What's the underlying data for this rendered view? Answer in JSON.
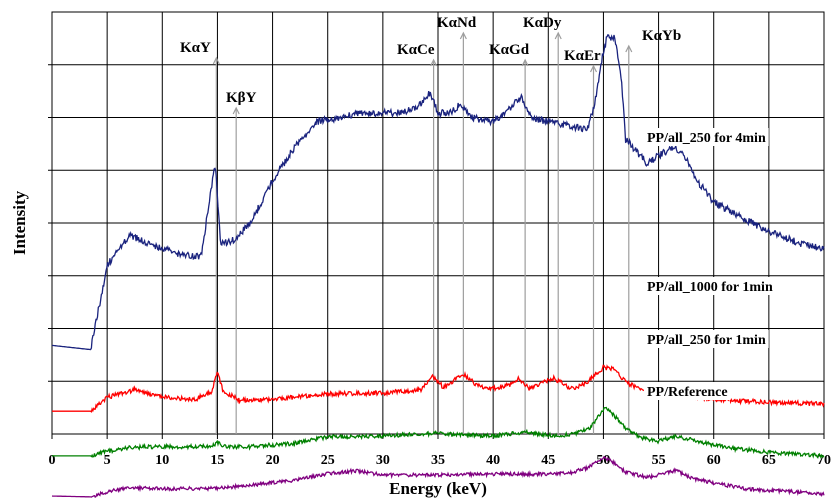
{
  "chart_data": {
    "type": "line",
    "title": "",
    "xlabel": "Energy (keV)",
    "ylabel": "Intensity",
    "xlim": [
      0,
      70
    ],
    "x_ticks": [
      0,
      5,
      10,
      15,
      20,
      25,
      30,
      35,
      40,
      45,
      50,
      55,
      60,
      65,
      70
    ],
    "x_tick_labels": [
      "0",
      "5",
      "10",
      "15",
      "20",
      "25",
      "30",
      "35",
      "40",
      "45",
      "50",
      "55",
      "60",
      "65",
      "70"
    ],
    "y_tick_count": 8,
    "y_tick_labels_shown": false,
    "grid": true,
    "legend": "none (series labelled directly on the plot)",
    "series": [
      {
        "name": "PP/all_250 for 4min",
        "color": "#1a237e",
        "points": [
          [
            0,
            0.79
          ],
          [
            3.5,
            0.8
          ],
          [
            5,
            0.6
          ],
          [
            7,
            0.53
          ],
          [
            9,
            0.55
          ],
          [
            11,
            0.57
          ],
          [
            13.5,
            0.58
          ],
          [
            14.8,
            0.36
          ],
          [
            15.3,
            0.55
          ],
          [
            16.5,
            0.54
          ],
          [
            18,
            0.5
          ],
          [
            20,
            0.4
          ],
          [
            22,
            0.32
          ],
          [
            24,
            0.26
          ],
          [
            26,
            0.25
          ],
          [
            28,
            0.24
          ],
          [
            31,
            0.24
          ],
          [
            33,
            0.23
          ],
          [
            34.3,
            0.19
          ],
          [
            35,
            0.24
          ],
          [
            36,
            0.24
          ],
          [
            37,
            0.22
          ],
          [
            38,
            0.25
          ],
          [
            40,
            0.26
          ],
          [
            41.5,
            0.23
          ],
          [
            42.5,
            0.2
          ],
          [
            43.5,
            0.25
          ],
          [
            45,
            0.26
          ],
          [
            47,
            0.27
          ],
          [
            48.5,
            0.28
          ],
          [
            49.2,
            0.22
          ],
          [
            49.8,
            0.12
          ],
          [
            50.3,
            0.06
          ],
          [
            51,
            0.06
          ],
          [
            51.6,
            0.15
          ],
          [
            52,
            0.3
          ],
          [
            53,
            0.33
          ],
          [
            54,
            0.36
          ],
          [
            55,
            0.34
          ],
          [
            56.5,
            0.32
          ],
          [
            57.5,
            0.35
          ],
          [
            58.5,
            0.4
          ],
          [
            60,
            0.45
          ],
          [
            62,
            0.48
          ],
          [
            65,
            0.52
          ],
          [
            68,
            0.55
          ],
          [
            70,
            0.56
          ]
        ]
      },
      {
        "name": "PP/all_1000 for 1min",
        "color": "#ff0000",
        "points": [
          [
            0,
            0.946
          ],
          [
            3.5,
            0.946
          ],
          [
            5,
            0.913
          ],
          [
            7.5,
            0.895
          ],
          [
            10,
            0.913
          ],
          [
            13,
            0.918
          ],
          [
            14.5,
            0.899
          ],
          [
            15,
            0.85
          ],
          [
            15.5,
            0.898
          ],
          [
            17,
            0.92
          ],
          [
            20,
            0.918
          ],
          [
            25,
            0.905
          ],
          [
            30,
            0.903
          ],
          [
            33.5,
            0.895
          ],
          [
            34.5,
            0.862
          ],
          [
            35.5,
            0.89
          ],
          [
            36.5,
            0.872
          ],
          [
            37.3,
            0.857
          ],
          [
            38.5,
            0.885
          ],
          [
            40,
            0.892
          ],
          [
            41.5,
            0.883
          ],
          [
            42.3,
            0.867
          ],
          [
            43.3,
            0.893
          ],
          [
            44.5,
            0.877
          ],
          [
            45.5,
            0.867
          ],
          [
            47,
            0.893
          ],
          [
            48.5,
            0.879
          ],
          [
            50,
            0.842
          ],
          [
            51,
            0.847
          ],
          [
            52,
            0.876
          ],
          [
            53.5,
            0.897
          ],
          [
            55,
            0.906
          ],
          [
            57,
            0.909
          ],
          [
            60,
            0.918
          ],
          [
            65,
            0.925
          ],
          [
            70,
            0.929
          ]
        ]
      },
      {
        "name": "PP/all_250 for 1min",
        "color": "#008000",
        "points": [
          [
            0,
            1.052
          ],
          [
            3.5,
            1.052
          ],
          [
            5,
            1.041
          ],
          [
            7,
            1.032
          ],
          [
            10,
            1.03
          ],
          [
            14.5,
            1.03
          ],
          [
            15,
            1.019
          ],
          [
            15.5,
            1.03
          ],
          [
            18,
            1.03
          ],
          [
            22,
            1.022
          ],
          [
            25,
            1.007
          ],
          [
            30,
            1.005
          ],
          [
            35,
            0.998
          ],
          [
            37,
            1.002
          ],
          [
            40,
            1.004
          ],
          [
            43,
            0.996
          ],
          [
            45,
            1.003
          ],
          [
            47,
            1.002
          ],
          [
            48.8,
            0.985
          ],
          [
            50.2,
            0.935
          ],
          [
            51,
            0.957
          ],
          [
            52,
            0.985
          ],
          [
            53.5,
            1.01
          ],
          [
            55,
            1.017
          ],
          [
            56.5,
            1.005
          ],
          [
            58,
            1.014
          ],
          [
            60,
            1.026
          ],
          [
            62,
            1.035
          ],
          [
            65,
            1.043
          ],
          [
            70,
            1.052
          ]
        ]
      },
      {
        "name": "PP/Reference",
        "color": "#800080",
        "points": [
          [
            0,
            1.147
          ],
          [
            3.5,
            1.149
          ],
          [
            5,
            1.137
          ],
          [
            7,
            1.127
          ],
          [
            10,
            1.13
          ],
          [
            15,
            1.129
          ],
          [
            18,
            1.121
          ],
          [
            22,
            1.11
          ],
          [
            25,
            1.094
          ],
          [
            27.5,
            1.087
          ],
          [
            30,
            1.097
          ],
          [
            35,
            1.097
          ],
          [
            40,
            1.095
          ],
          [
            45,
            1.095
          ],
          [
            47,
            1.092
          ],
          [
            48.5,
            1.08
          ],
          [
            50,
            1.055
          ],
          [
            50.8,
            1.065
          ],
          [
            52,
            1.09
          ],
          [
            54,
            1.103
          ],
          [
            55,
            1.097
          ],
          [
            56.5,
            1.086
          ],
          [
            58,
            1.104
          ],
          [
            60,
            1.116
          ],
          [
            63,
            1.13
          ],
          [
            66,
            1.135
          ],
          [
            70,
            1.142
          ]
        ]
      }
    ],
    "annotations": [
      {
        "text": "KαY",
        "x": 14.9
      },
      {
        "text": "KβY",
        "x": 16.7
      },
      {
        "text": "KαCe",
        "x": 34.6
      },
      {
        "text": "KαNd",
        "x": 37.3
      },
      {
        "text": "KαGd",
        "x": 42.9
      },
      {
        "text": "KαDy",
        "x": 45.9
      },
      {
        "text": "KαEr",
        "x": 49.1
      },
      {
        "text": "KαYb",
        "x": 52.3
      }
    ]
  }
}
